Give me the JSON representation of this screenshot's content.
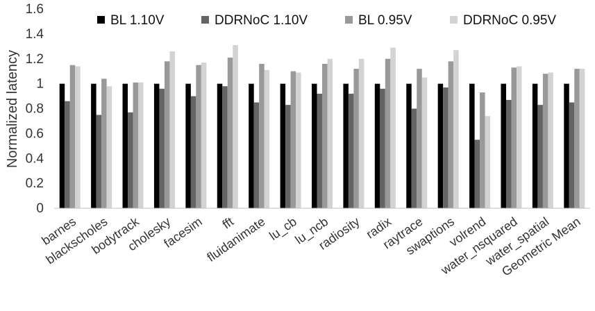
{
  "chart_data": {
    "type": "bar",
    "title": "",
    "xlabel": "",
    "ylabel": "Normalized latency",
    "ylim": [
      0,
      1.6
    ],
    "yticks": [
      0,
      0.2,
      0.4,
      0.6,
      0.8,
      1,
      1.2,
      1.4,
      1.6
    ],
    "ytick_labels": [
      "0",
      "0.2",
      "0.4",
      "0.6",
      "0.8",
      "1",
      "1.2",
      "1.4",
      "1.6"
    ],
    "grid": false,
    "legend_position": "top",
    "categories": [
      "barnes",
      "blackscholes",
      "bodytrack",
      "cholesky",
      "facesim",
      "fft",
      "fluidanimate",
      "lu_cb",
      "lu_ncb",
      "radiosity",
      "radix",
      "raytrace",
      "swaptions",
      "volrend",
      "water_nsquared",
      "water_spatial",
      "Geometric Mean"
    ],
    "series": [
      {
        "name": "BL 1.10V",
        "color": "#000000",
        "values": [
          1,
          1,
          1,
          1,
          1,
          1,
          1,
          1,
          1,
          1,
          1,
          1,
          1,
          1,
          1,
          1,
          1
        ]
      },
      {
        "name": "DDRNoC 1.10V",
        "color": "#646464",
        "values": [
          0.86,
          0.75,
          0.77,
          0.96,
          0.9,
          0.98,
          0.85,
          0.83,
          0.92,
          0.92,
          0.96,
          0.8,
          0.97,
          0.55,
          0.87,
          0.83,
          0.85
        ]
      },
      {
        "name": "BL 0.95V",
        "color": "#999999",
        "values": [
          1.15,
          1.04,
          1.01,
          1.18,
          1.15,
          1.21,
          1.16,
          1.1,
          1.16,
          1.12,
          1.2,
          1.12,
          1.18,
          0.93,
          1.13,
          1.08,
          1.12
        ]
      },
      {
        "name": "DDRNoC 0.95V",
        "color": "#d3d3d3",
        "values": [
          1.14,
          0.98,
          1.01,
          1.26,
          1.17,
          1.31,
          1.11,
          1.09,
          1.2,
          1.2,
          1.29,
          1.05,
          1.27,
          0.74,
          1.14,
          1.09,
          1.12
        ]
      }
    ]
  }
}
